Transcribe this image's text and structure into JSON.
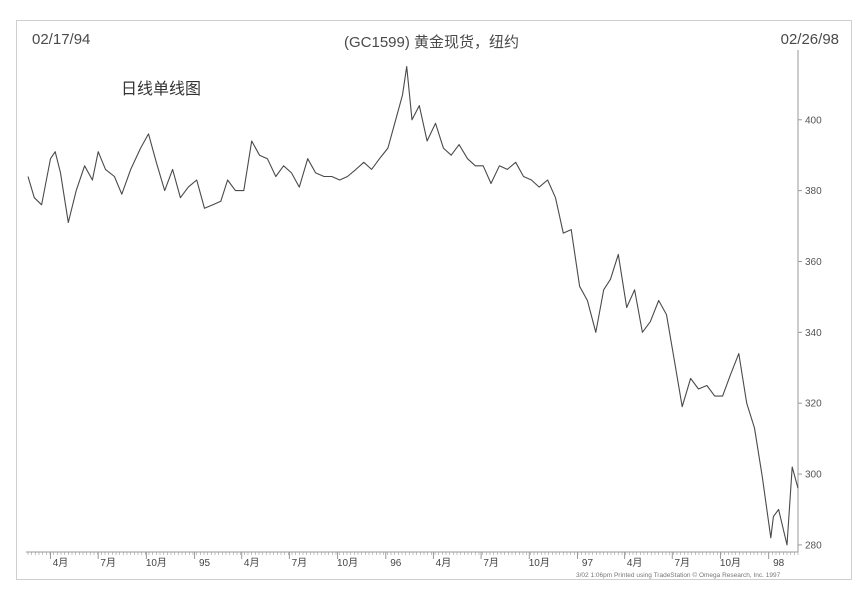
{
  "header": {
    "start_date": "02/17/94",
    "end_date": "02/26/98",
    "title": "(GC1599) 黄金现货，纽约",
    "subtitle": "日线单线图",
    "credit": "3/02  1:06pm Printed using TradeStation © Omega Research, Inc. 1997"
  },
  "colors": {
    "line": "#4a4a4a",
    "axis": "#9a9a9a"
  },
  "chart_data": {
    "type": "line",
    "title": "(GC1599) 黄金现货，纽约",
    "ylim": [
      278,
      418
    ],
    "y_ticks": [
      280,
      300,
      320,
      340,
      360,
      380,
      400
    ],
    "x_range": [
      "1994-02-17",
      "1998-02-26"
    ],
    "x_tick_labels": [
      {
        "date": "1994-04-01",
        "label": "4月"
      },
      {
        "date": "1994-07-01",
        "label": "7月"
      },
      {
        "date": "1994-10-01",
        "label": "10月"
      },
      {
        "date": "1995-01-01",
        "label": "95"
      },
      {
        "date": "1995-04-01",
        "label": "4月"
      },
      {
        "date": "1995-07-01",
        "label": "7月"
      },
      {
        "date": "1995-10-01",
        "label": "10月"
      },
      {
        "date": "1996-01-01",
        "label": "96"
      },
      {
        "date": "1996-04-01",
        "label": "4月"
      },
      {
        "date": "1996-07-01",
        "label": "7月"
      },
      {
        "date": "1996-10-01",
        "label": "10月"
      },
      {
        "date": "1997-01-01",
        "label": "97"
      },
      {
        "date": "1997-04-01",
        "label": "4月"
      },
      {
        "date": "1997-07-01",
        "label": "7月"
      },
      {
        "date": "1997-10-01",
        "label": "10月"
      },
      {
        "date": "1998-01-01",
        "label": "98"
      }
    ],
    "series": [
      {
        "x": [
          "1994-02-17",
          "1994-03-01",
          "1994-03-15",
          "1994-04-01",
          "1994-04-10",
          "1994-04-20",
          "1994-05-05",
          "1994-05-20",
          "1994-06-05",
          "1994-06-20",
          "1994-07-01",
          "1994-07-15",
          "1994-08-01",
          "1994-08-15",
          "1994-09-01",
          "1994-09-20",
          "1994-10-05",
          "1994-10-20",
          "1994-11-05",
          "1994-11-20",
          "1994-12-05",
          "1994-12-20",
          "1995-01-05",
          "1995-01-20",
          "1995-02-05",
          "1995-02-20",
          "1995-03-05",
          "1995-03-20",
          "1995-04-05",
          "1995-04-20",
          "1995-05-05",
          "1995-05-20",
          "1995-06-05",
          "1995-06-20",
          "1995-07-05",
          "1995-07-20",
          "1995-08-05",
          "1995-08-20",
          "1995-09-05",
          "1995-09-20",
          "1995-10-05",
          "1995-10-20",
          "1995-11-05",
          "1995-11-20",
          "1995-12-05",
          "1995-12-20",
          "1996-01-05",
          "1996-01-20",
          "1996-02-02",
          "1996-02-10",
          "1996-02-20",
          "1996-03-05",
          "1996-03-20",
          "1996-04-05",
          "1996-04-20",
          "1996-05-05",
          "1996-05-20",
          "1996-06-05",
          "1996-06-20",
          "1996-07-05",
          "1996-07-20",
          "1996-08-05",
          "1996-08-20",
          "1996-09-05",
          "1996-09-20",
          "1996-10-05",
          "1996-10-20",
          "1996-11-05",
          "1996-11-20",
          "1996-12-05",
          "1996-12-20",
          "1997-01-05",
          "1997-01-20",
          "1997-02-05",
          "1997-02-20",
          "1997-03-05",
          "1997-03-20",
          "1997-04-05",
          "1997-04-20",
          "1997-05-05",
          "1997-05-20",
          "1997-06-05",
          "1997-06-20",
          "1997-07-05",
          "1997-07-20",
          "1997-08-05",
          "1997-08-20",
          "1997-09-05",
          "1997-09-20",
          "1997-10-05",
          "1997-10-20",
          "1997-11-05",
          "1997-11-20",
          "1997-12-05",
          "1997-12-20",
          "1998-01-05",
          "1998-01-10",
          "1998-01-20",
          "1998-02-05",
          "1998-02-15",
          "1998-02-26"
        ],
        "y": [
          384,
          378,
          376,
          389,
          391,
          385,
          371,
          380,
          387,
          383,
          391,
          386,
          384,
          379,
          386,
          392,
          396,
          388,
          380,
          386,
          378,
          381,
          383,
          375,
          376,
          377,
          383,
          380,
          380,
          394,
          390,
          389,
          384,
          387,
          385,
          381,
          389,
          385,
          384,
          384,
          383,
          384,
          386,
          388,
          386,
          389,
          392,
          400,
          407,
          415,
          400,
          404,
          394,
          399,
          392,
          390,
          393,
          389,
          387,
          387,
          382,
          387,
          386,
          388,
          384,
          383,
          381,
          383,
          378,
          368,
          369,
          353,
          349,
          340,
          352,
          355,
          362,
          347,
          352,
          340,
          343,
          349,
          345,
          332,
          319,
          327,
          324,
          325,
          322,
          322,
          328,
          334,
          320,
          313,
          299,
          282,
          288,
          290,
          280,
          302,
          296
        ]
      }
    ]
  }
}
